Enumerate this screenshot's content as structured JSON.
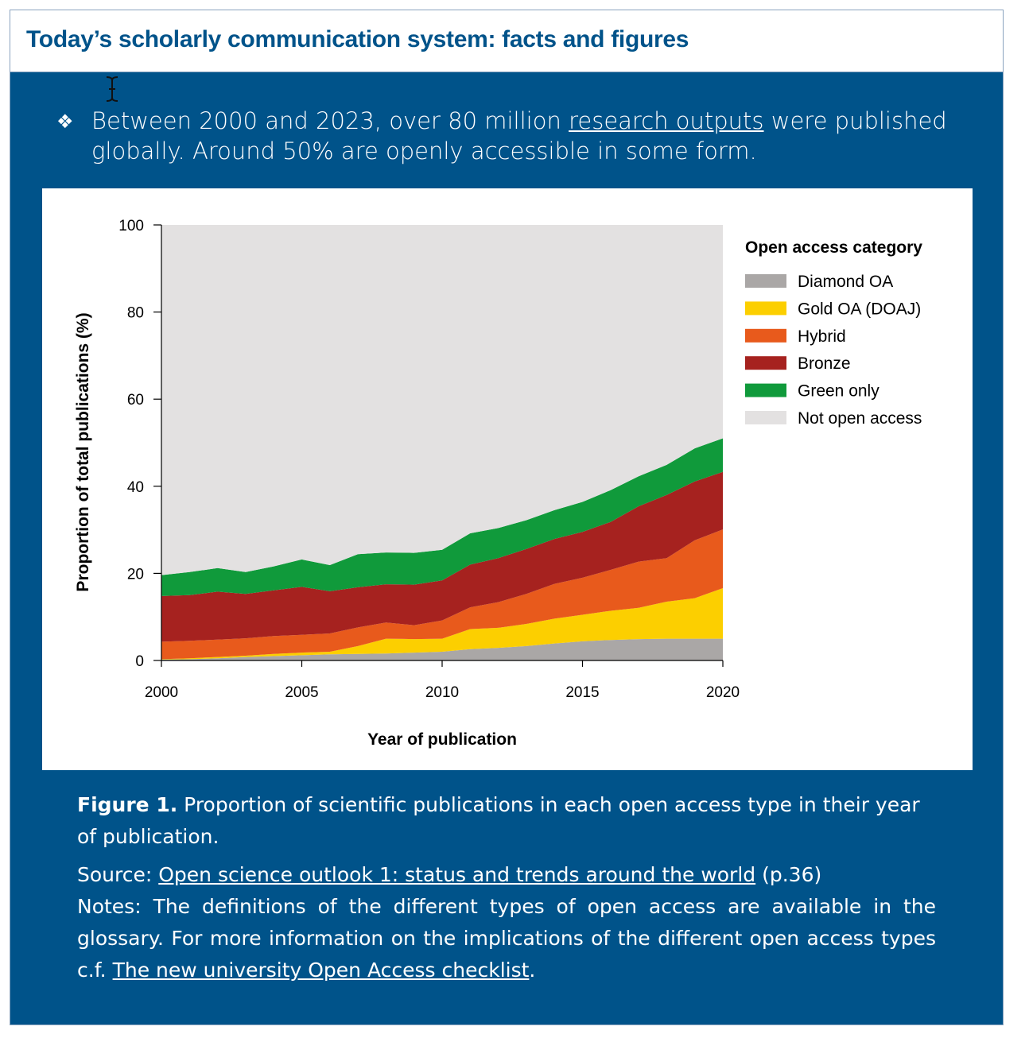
{
  "header": {
    "title": "Today’s scholarly communication system: facts and figures"
  },
  "intro": {
    "bullet": "❖",
    "text_before": "Between 2000 and 2023, over 80 million ",
    "link": "research outputs",
    "text_after": " were published globally. Around 50% are openly accessible in some form."
  },
  "caption": {
    "figure_label": "Figure 1.",
    "figure_text": " Proportion of scientific publications in each open access type in their year of publication.",
    "source_prefix": "Source: ",
    "source_link": "Open science outlook 1: status and trends around the world",
    "source_suffix": " (p.36)",
    "notes_text": "Notes: The definitions of the different types of open access are available in the glossary. For more information on the implications of the different open access types c.f. ",
    "notes_link": "The new university Open Access checklist",
    "notes_end": "."
  },
  "chart_data": {
    "type": "area",
    "stacked": true,
    "xlabel": "Year of publication",
    "ylabel": "Proportion of total publications (%)",
    "xlim": [
      2000,
      2020
    ],
    "ylim": [
      0,
      100
    ],
    "xticks": [
      2000,
      2005,
      2010,
      2015,
      2020
    ],
    "yticks": [
      0,
      20,
      40,
      60,
      80,
      100
    ],
    "legend_title": "Open access category",
    "legend_position": "right",
    "x": [
      2000,
      2001,
      2002,
      2003,
      2004,
      2005,
      2006,
      2007,
      2008,
      2009,
      2010,
      2011,
      2012,
      2013,
      2014,
      2015,
      2016,
      2017,
      2018,
      2019,
      2020
    ],
    "series": [
      {
        "name": "Diamond OA",
        "color": "#aaa7a6",
        "values": [
          0.2,
          0.3,
          0.5,
          0.8,
          1.0,
          1.2,
          1.4,
          1.5,
          1.6,
          1.8,
          2.0,
          2.6,
          2.9,
          3.3,
          3.9,
          4.4,
          4.7,
          4.9,
          5.0,
          5.0,
          5.0
        ]
      },
      {
        "name": "Gold OA (DOAJ)",
        "color": "#fccf00",
        "values": [
          0.1,
          0.2,
          0.3,
          0.3,
          0.5,
          0.6,
          0.6,
          1.8,
          3.4,
          3.1,
          3.0,
          4.6,
          4.6,
          5.1,
          5.7,
          6.1,
          6.7,
          7.2,
          8.5,
          9.3,
          11.6
        ]
      },
      {
        "name": "Hybrid",
        "color": "#e85a1c",
        "values": [
          4.0,
          4.0,
          4.0,
          4.0,
          4.1,
          4.1,
          4.2,
          4.3,
          3.7,
          3.2,
          4.2,
          5.0,
          5.9,
          6.9,
          8.0,
          8.5,
          9.4,
          10.6,
          10.0,
          13.3,
          13.5
        ]
      },
      {
        "name": "Bronze",
        "color": "#a6221f",
        "values": [
          10.5,
          10.5,
          11.0,
          10.2,
          10.5,
          11.0,
          9.7,
          9.2,
          8.8,
          9.3,
          9.2,
          9.8,
          10.1,
          10.3,
          10.3,
          10.5,
          11.0,
          12.7,
          14.5,
          13.5,
          13.2
        ]
      },
      {
        "name": "Green only",
        "color": "#109a3b",
        "values": [
          4.8,
          5.3,
          5.4,
          5.0,
          5.5,
          6.3,
          6.0,
          7.6,
          7.3,
          7.3,
          7.0,
          7.2,
          6.9,
          6.6,
          6.6,
          6.9,
          7.3,
          6.9,
          6.9,
          7.6,
          7.7
        ]
      },
      {
        "name": "Not open access",
        "color": "#e3e1e1",
        "values": [
          80.4,
          79.7,
          78.8,
          79.7,
          78.4,
          76.8,
          78.1,
          75.6,
          75.2,
          75.3,
          74.6,
          70.8,
          69.6,
          67.8,
          65.5,
          63.6,
          60.9,
          57.7,
          55.1,
          51.3,
          49.0
        ]
      }
    ]
  }
}
